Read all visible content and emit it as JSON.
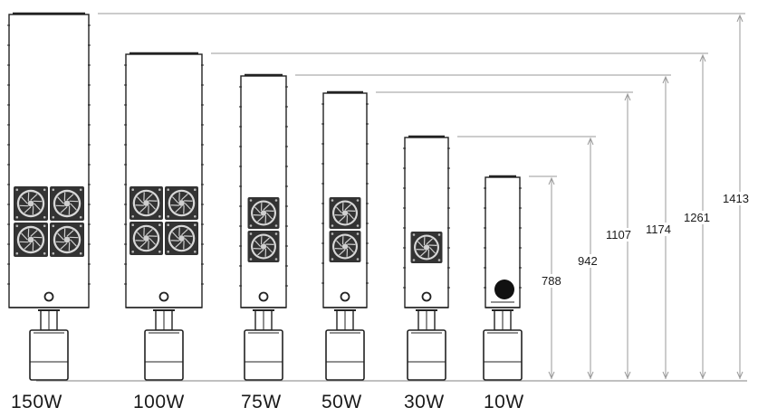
{
  "models": [
    {
      "label": "150W",
      "height": "1413",
      "fan_rows": 2,
      "fan_cols": 2
    },
    {
      "label": "100W",
      "height": "1261",
      "fan_rows": 2,
      "fan_cols": 2
    },
    {
      "label": "75W",
      "height": "1174",
      "fan_rows": 2,
      "fan_cols": 1
    },
    {
      "label": "50W",
      "height": "1107",
      "fan_rows": 2,
      "fan_cols": 1
    },
    {
      "label": "30W",
      "height": "942",
      "fan_rows": 1,
      "fan_cols": 1
    },
    {
      "label": "10W",
      "height": "788",
      "fan_rows": 0,
      "fan_cols": 0
    }
  ],
  "colors": {
    "line": "#222222",
    "dim_line": "#9a9a9a",
    "fan": "#333333"
  }
}
